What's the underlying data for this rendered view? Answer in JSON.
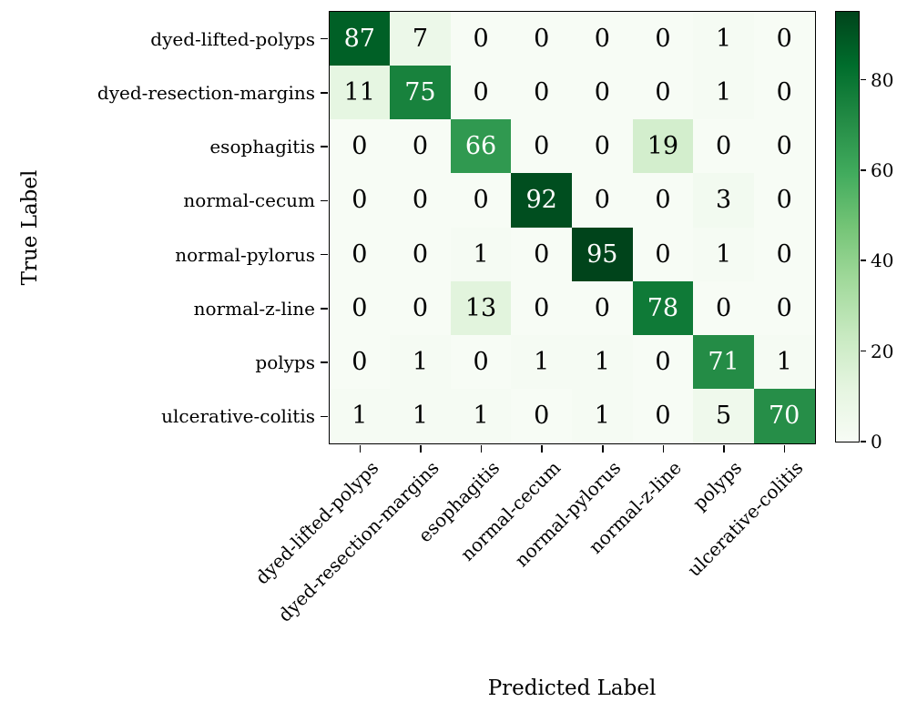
{
  "figure": {
    "background": "#ffffff",
    "text_color": "#000000",
    "axis_color": "#000000"
  },
  "chart_data": {
    "type": "heatmap",
    "title": "",
    "xlabel": "Predicted Label",
    "ylabel": "True Label",
    "categories": [
      "dyed-lifted-polyps",
      "dyed-resection-margins",
      "esophagitis",
      "normal-cecum",
      "normal-pylorus",
      "normal-z-line",
      "polyps",
      "ulcerative-colitis"
    ],
    "matrix": [
      [
        87,
        7,
        0,
        0,
        0,
        0,
        1,
        0
      ],
      [
        11,
        75,
        0,
        0,
        0,
        0,
        1,
        0
      ],
      [
        0,
        0,
        66,
        0,
        0,
        19,
        0,
        0
      ],
      [
        0,
        0,
        0,
        92,
        0,
        0,
        3,
        0
      ],
      [
        0,
        0,
        1,
        0,
        95,
        0,
        1,
        0
      ],
      [
        0,
        0,
        13,
        0,
        0,
        78,
        0,
        0
      ],
      [
        0,
        1,
        0,
        1,
        1,
        0,
        71,
        1
      ],
      [
        1,
        1,
        1,
        0,
        1,
        0,
        5,
        70
      ]
    ],
    "vmin": 0,
    "vmax": 95,
    "colormap": "Greens",
    "colormap_stops": [
      "#f7fcf5",
      "#e5f5e0",
      "#c7e9c0",
      "#a1d99b",
      "#74c476",
      "#41ab5d",
      "#238b45",
      "#006d2c",
      "#00441b"
    ],
    "colorbar_ticks": [
      0,
      20,
      40,
      60,
      80
    ],
    "colorbar_position": "right",
    "value_text_dark": "#000000",
    "value_text_light": "#ffffff",
    "grid": false,
    "x_tick_rotation_deg": 45
  }
}
